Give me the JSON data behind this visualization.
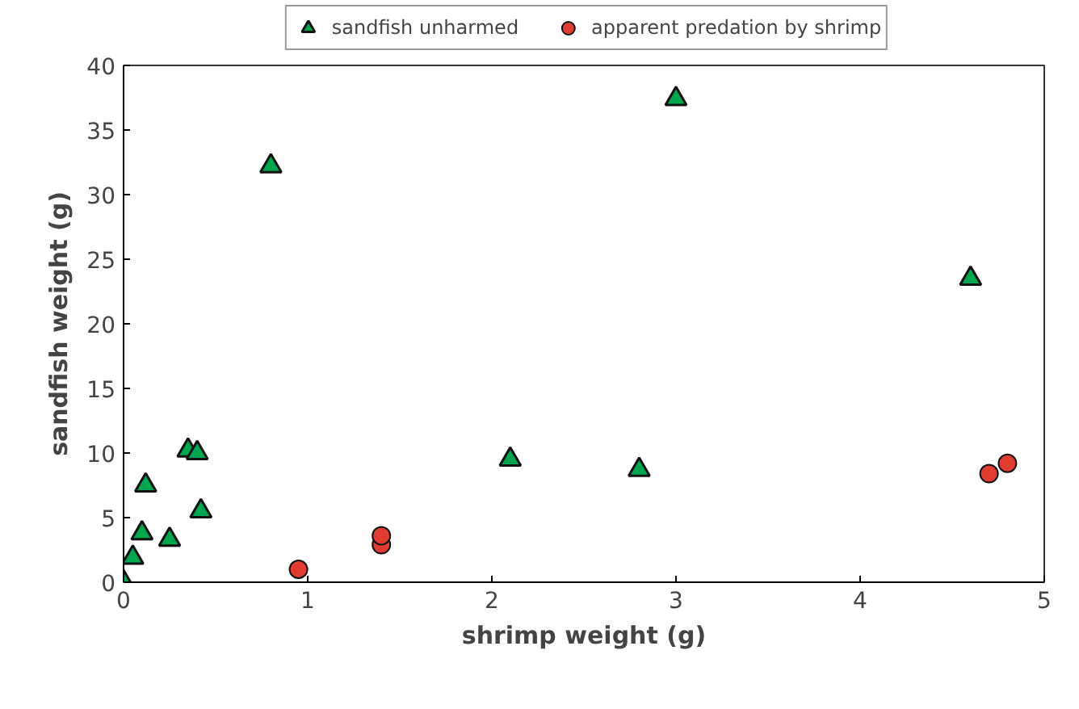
{
  "chart_data": {
    "type": "scatter",
    "xlabel": "shrimp weight (g)",
    "ylabel": "sandfish weight (g)",
    "xlim": [
      0,
      5
    ],
    "ylim": [
      0,
      40
    ],
    "xticks": [
      0,
      1,
      2,
      3,
      4,
      5
    ],
    "yticks": [
      0,
      5,
      10,
      15,
      20,
      25,
      30,
      35,
      40
    ],
    "grid": false,
    "legend": "top",
    "series": [
      {
        "name": "sandfish unharmed",
        "color": "#00a550",
        "marker": "triangle",
        "x": [
          0,
          0.05,
          0.1,
          0.12,
          0.25,
          0.35,
          0.4,
          0.42,
          0.8,
          2.1,
          2.8,
          3.0,
          4.6
        ],
        "values": [
          0,
          1.9,
          3.8,
          7.5,
          3.3,
          10.2,
          10,
          5.5,
          32.2,
          9.5,
          8.7,
          37.4,
          23.5
        ]
      },
      {
        "name": "apparent predation by shrimp",
        "color": "#e03c31",
        "marker": "circle",
        "x": [
          0.95,
          1.4,
          1.4,
          4.7,
          4.8
        ],
        "values": [
          1,
          2.9,
          3.6,
          8.4,
          9.2
        ]
      }
    ]
  }
}
